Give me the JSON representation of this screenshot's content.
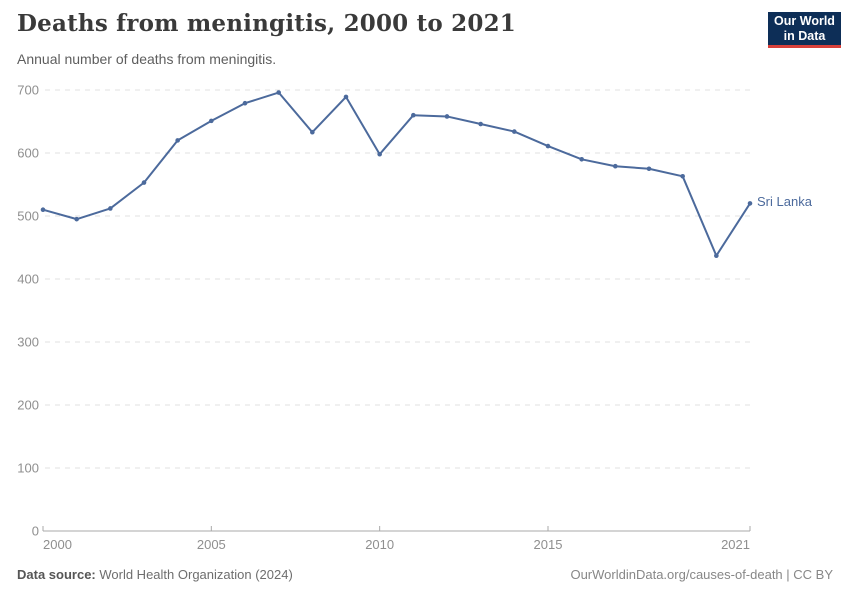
{
  "header": {
    "logo": {
      "line1": "Our World",
      "line2": "in Data",
      "bg_color": "#0d2e57",
      "accent_color": "#d8403a"
    }
  },
  "chart_data": {
    "type": "line",
    "title": "Deaths from meningitis, 2000 to 2021",
    "subtitle": "Annual number of deaths from meningitis.",
    "xlabel": "",
    "ylabel": "",
    "x": [
      2000,
      2001,
      2002,
      2003,
      2004,
      2005,
      2006,
      2007,
      2008,
      2009,
      2010,
      2011,
      2012,
      2013,
      2014,
      2015,
      2016,
      2017,
      2018,
      2019,
      2020,
      2021
    ],
    "series": [
      {
        "name": "Sri Lanka",
        "color": "#4c6a9c",
        "values": [
          510,
          495,
          512,
          553,
          620,
          651,
          679,
          696,
          633,
          689,
          598,
          660,
          658,
          646,
          634,
          611,
          590,
          579,
          575,
          563,
          437,
          520
        ]
      }
    ],
    "xlim": [
      2000,
      2021
    ],
    "ylim": [
      0,
      700
    ],
    "x_ticks": [
      2000,
      2005,
      2010,
      2015,
      2021
    ],
    "y_ticks": [
      0,
      100,
      200,
      300,
      400,
      500,
      600,
      700
    ],
    "grid": "horizontal-dashed",
    "legend": "end-of-line-label",
    "marker": "dot"
  },
  "footer": {
    "source_label": "Data source:",
    "source_value": " World Health Organization (2024)",
    "credit": "OurWorldinData.org/causes-of-death | CC BY"
  }
}
